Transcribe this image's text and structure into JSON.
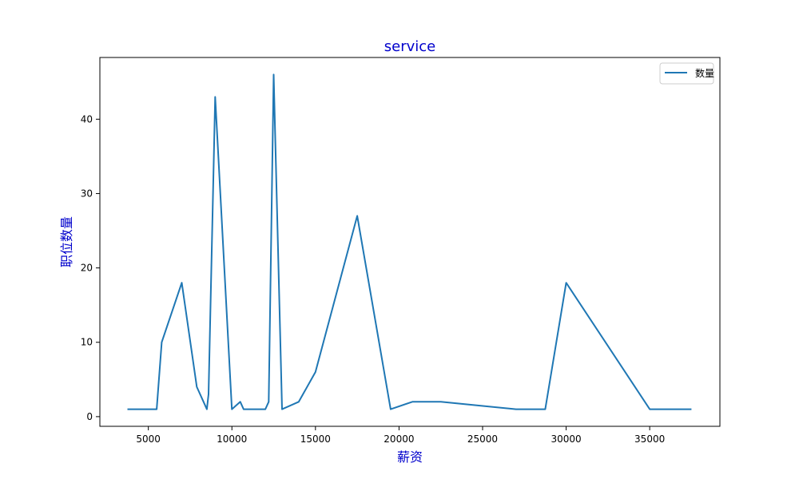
{
  "chart_data": {
    "type": "line",
    "title": "service",
    "xlabel": "薪资",
    "ylabel": "职位数量",
    "label_color": "#0000cc",
    "line_color": "#1f77b4",
    "xlim": [
      2100,
      39200
    ],
    "ylim": [
      -1.3,
      48.3
    ],
    "xticks": [
      5000,
      10000,
      15000,
      20000,
      25000,
      30000,
      35000
    ],
    "yticks": [
      0,
      10,
      20,
      30,
      40
    ],
    "grid": false,
    "legend_position": "top-right",
    "series": [
      {
        "name": "数量",
        "x": [
          3750,
          5500,
          5800,
          7000,
          7900,
          8500,
          8600,
          9000,
          10000,
          10500,
          10700,
          12000,
          12200,
          12500,
          13000,
          14000,
          15000,
          17500,
          19500,
          20800,
          22500,
          27000,
          28750,
          30000,
          35000,
          37500
        ],
        "y": [
          1,
          1,
          10,
          18,
          4,
          1,
          3,
          43,
          1,
          2,
          1,
          1,
          2,
          46,
          1,
          2,
          6,
          27,
          1,
          2,
          2,
          1,
          1,
          18,
          1,
          1
        ]
      }
    ]
  }
}
